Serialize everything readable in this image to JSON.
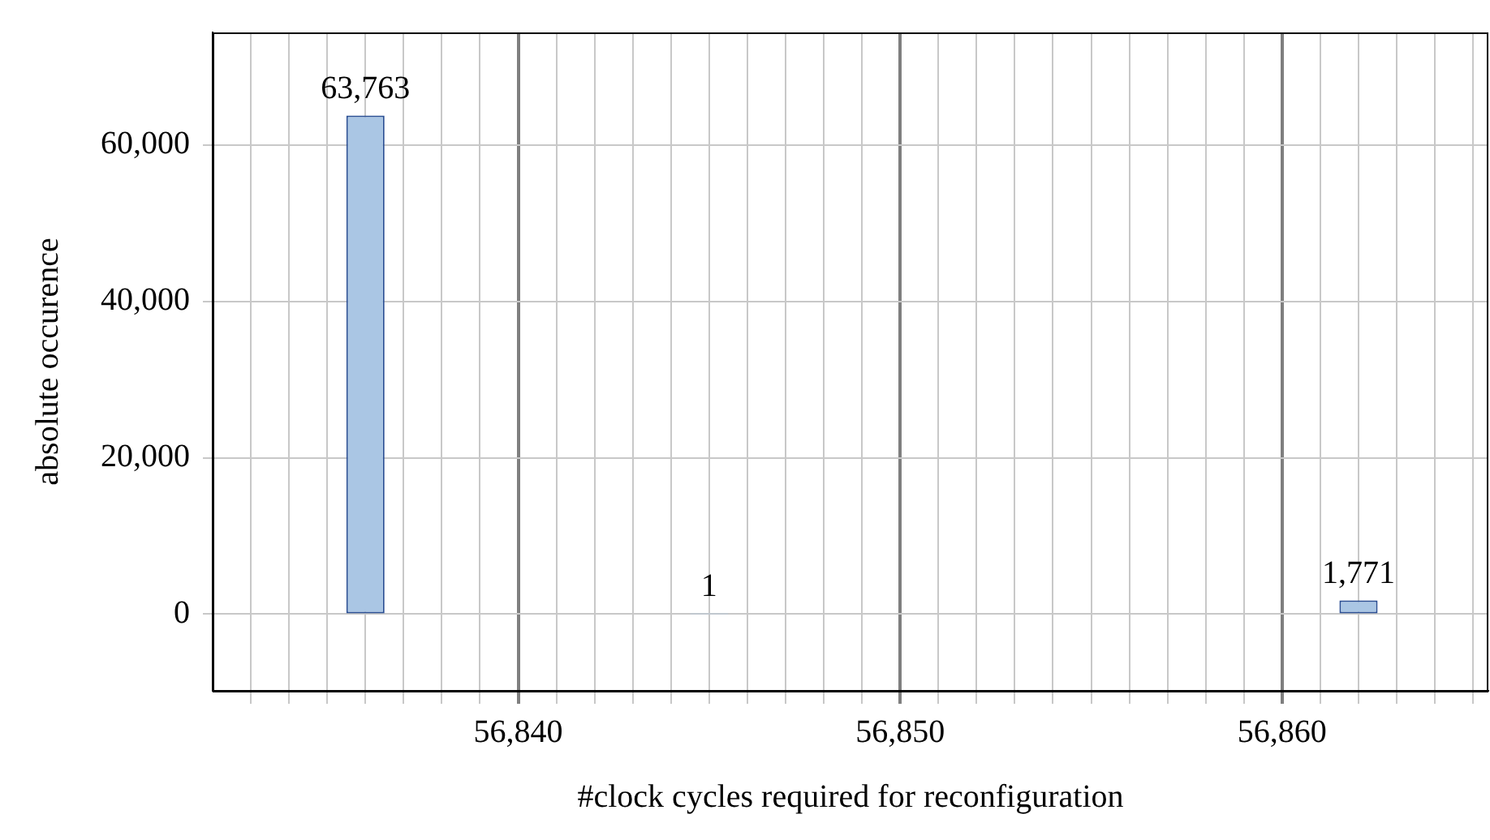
{
  "chart_data": {
    "type": "bar",
    "xlabel": "#clock cycles required for reconfiguration",
    "ylabel": "absolute occurence",
    "x": [
      56836,
      56845,
      56862
    ],
    "values": [
      63763,
      1,
      1771
    ],
    "value_labels": [
      "63,763",
      "1",
      "1,771"
    ],
    "color": "#aac6e4",
    "xlim": [
      56832,
      56865.4
    ],
    "xticks": [
      {
        "value": 56833,
        "label": null
      },
      {
        "value": 56834,
        "label": null
      },
      {
        "value": 56835,
        "label": null
      },
      {
        "value": 56836,
        "label": null
      },
      {
        "value": 56837,
        "label": null
      },
      {
        "value": 56838,
        "label": null
      },
      {
        "value": 56839,
        "label": null
      },
      {
        "value": 56840,
        "label": "56,840"
      },
      {
        "value": 56841,
        "label": null
      },
      {
        "value": 56842,
        "label": null
      },
      {
        "value": 56843,
        "label": null
      },
      {
        "value": 56844,
        "label": null
      },
      {
        "value": 56845,
        "label": null
      },
      {
        "value": 56846,
        "label": null
      },
      {
        "value": 56847,
        "label": null
      },
      {
        "value": 56848,
        "label": null
      },
      {
        "value": 56849,
        "label": null
      },
      {
        "value": 56850,
        "label": "56,850"
      },
      {
        "value": 56851,
        "label": null
      },
      {
        "value": 56852,
        "label": null
      },
      {
        "value": 56853,
        "label": null
      },
      {
        "value": 56854,
        "label": null
      },
      {
        "value": 56855,
        "label": null
      },
      {
        "value": 56856,
        "label": null
      },
      {
        "value": 56857,
        "label": null
      },
      {
        "value": 56858,
        "label": null
      },
      {
        "value": 56859,
        "label": null
      },
      {
        "value": 56860,
        "label": "56,860"
      },
      {
        "value": 56861,
        "label": null
      },
      {
        "value": 56862,
        "label": null
      },
      {
        "value": 56863,
        "label": null
      },
      {
        "value": 56864,
        "label": null
      },
      {
        "value": 56865,
        "label": null
      }
    ],
    "ylim": [
      -9800,
      74400
    ],
    "yticks": [
      0,
      {
        "value": 20000,
        "label": "20,000"
      },
      {
        "value": 40000,
        "label": "40,000"
      },
      {
        "value": 60000,
        "label": "60,000"
      }
    ],
    "grid": true,
    "legend": false
  }
}
